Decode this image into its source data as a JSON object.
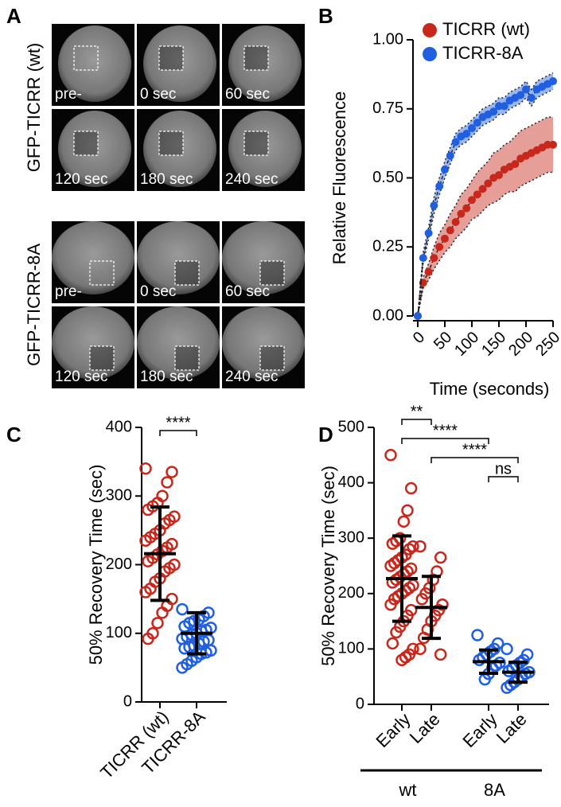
{
  "panel_a": {
    "panel_label": "A",
    "groups": [
      {
        "label": "GFP-TICRR (wt)",
        "frames": [
          "pre-",
          "0 sec",
          "60 sec",
          "120 sec",
          "180 sec",
          "240 sec"
        ]
      },
      {
        "label": "GFP-TICRR-8A",
        "frames": [
          "pre-",
          "0 sec",
          "60 sec",
          "120 sec",
          "180 sec",
          "240 sec"
        ]
      }
    ]
  },
  "chart_data": [
    {
      "type": "line",
      "panel_label": "B",
      "ylabel": "Relative Fluorescence",
      "xlabel": "Time (seconds)",
      "x": [
        0,
        10,
        20,
        30,
        40,
        50,
        60,
        70,
        80,
        90,
        100,
        110,
        120,
        130,
        140,
        150,
        160,
        170,
        180,
        190,
        200,
        210,
        220,
        230,
        240,
        250
      ],
      "xlim": [
        0,
        250
      ],
      "xticks": [
        0,
        50,
        100,
        150,
        200,
        250
      ],
      "ylim": [
        0,
        1
      ],
      "yticks": [
        {
          "value": 0,
          "label": "0.00"
        },
        {
          "value": 0.25,
          "label": "0.25"
        },
        {
          "value": 0.5,
          "label": "0.50"
        },
        {
          "value": 0.75,
          "label": "0.75"
        },
        {
          "value": 1,
          "label": "1.00"
        }
      ],
      "legend": "top-left",
      "series": [
        {
          "name": "TICRR (wt)",
          "color": "#c8281c",
          "values": [
            0,
            0.12,
            0.16,
            0.21,
            0.25,
            0.28,
            0.31,
            0.34,
            0.37,
            0.39,
            0.42,
            0.44,
            0.46,
            0.48,
            0.5,
            0.51,
            0.53,
            0.54,
            0.55,
            0.57,
            0.58,
            0.59,
            0.6,
            0.61,
            0.62,
            0.62
          ],
          "errors": [
            0,
            0.02,
            0.03,
            0.04,
            0.05,
            0.05,
            0.06,
            0.06,
            0.07,
            0.07,
            0.07,
            0.08,
            0.08,
            0.08,
            0.09,
            0.09,
            0.09,
            0.09,
            0.1,
            0.1,
            0.1,
            0.1,
            0.1,
            0.1,
            0.1,
            0.1
          ]
        },
        {
          "name": "TICRR-8A",
          "color": "#1f5fe0",
          "values": [
            0,
            0.21,
            0.3,
            0.4,
            0.47,
            0.53,
            0.58,
            0.63,
            0.65,
            0.66,
            0.68,
            0.7,
            0.72,
            0.73,
            0.74,
            0.76,
            0.76,
            0.78,
            0.79,
            0.8,
            0.82,
            0.79,
            0.82,
            0.83,
            0.84,
            0.85
          ],
          "errors": [
            0,
            0.02,
            0.02,
            0.03,
            0.03,
            0.03,
            0.03,
            0.03,
            0.03,
            0.03,
            0.03,
            0.03,
            0.03,
            0.03,
            0.03,
            0.03,
            0.03,
            0.03,
            0.03,
            0.03,
            0.03,
            0.03,
            0.03,
            0.03,
            0.03,
            0.03
          ]
        }
      ]
    },
    {
      "type": "dot",
      "panel_label": "C",
      "ylabel": "50% Recovery Time (sec)",
      "categories": [
        "TICRR (wt)",
        "TICRR-8A"
      ],
      "ylim": [
        0,
        400
      ],
      "yticks": [
        0,
        100,
        200,
        300,
        400
      ],
      "groups": [
        {
          "color": "#c8281c",
          "mean": 216,
          "sd": 68,
          "values": [
            340,
            335,
            320,
            300,
            290,
            285,
            280,
            270,
            265,
            260,
            250,
            245,
            240,
            235,
            230,
            225,
            220,
            215,
            210,
            205,
            200,
            195,
            190,
            180,
            175,
            165,
            160,
            150,
            140,
            130,
            115,
            100,
            92
          ]
        },
        {
          "color": "#1f5fe0",
          "mean": 100,
          "sd": 30,
          "values": [
            135,
            130,
            125,
            120,
            118,
            115,
            110,
            108,
            105,
            103,
            100,
            98,
            95,
            92,
            90,
            88,
            85,
            82,
            80,
            78,
            75,
            72,
            70,
            65,
            60,
            55,
            50
          ]
        }
      ],
      "comparisons": [
        {
          "pair": [
            0,
            1
          ],
          "label": "****"
        }
      ]
    },
    {
      "type": "dot",
      "panel_label": "D",
      "ylabel": "50% Recovery Time (sec)",
      "categories": [
        "Early",
        "Late",
        "Early",
        "Late"
      ],
      "category_groups": [
        {
          "label": "wt",
          "span": [
            0,
            1
          ]
        },
        {
          "label": "8A",
          "span": [
            2,
            3
          ]
        }
      ],
      "ylim": [
        0,
        500
      ],
      "yticks": [
        0,
        100,
        200,
        300,
        400,
        500
      ],
      "groups": [
        {
          "color": "#c8281c",
          "mean": 227,
          "sd": 77,
          "values": [
            450,
            390,
            350,
            330,
            300,
            295,
            290,
            285,
            280,
            270,
            265,
            260,
            255,
            250,
            245,
            240,
            235,
            230,
            225,
            220,
            215,
            210,
            205,
            200,
            195,
            190,
            180,
            170,
            160,
            150,
            140,
            130,
            110,
            100,
            90,
            85,
            80
          ]
        },
        {
          "color": "#c8281c",
          "mean": 175,
          "sd": 56,
          "values": [
            285,
            265,
            240,
            225,
            210,
            200,
            190,
            180,
            170,
            160,
            150,
            135,
            120,
            100,
            90
          ]
        },
        {
          "color": "#1f5fe0",
          "mean": 77,
          "sd": 21,
          "values": [
            125,
            110,
            100,
            95,
            90,
            85,
            80,
            75,
            70,
            65,
            55,
            45
          ]
        },
        {
          "color": "#1f5fe0",
          "mean": 58,
          "sd": 18,
          "values": [
            100,
            90,
            80,
            75,
            70,
            65,
            60,
            58,
            55,
            50,
            45,
            40,
            35,
            30
          ]
        }
      ],
      "comparisons": [
        {
          "pair": [
            0,
            1
          ],
          "label": "**"
        },
        {
          "pair": [
            0,
            2
          ],
          "label": "****"
        },
        {
          "pair": [
            1,
            3
          ],
          "label": "****"
        },
        {
          "pair": [
            2,
            3
          ],
          "label": "ns"
        }
      ]
    }
  ]
}
